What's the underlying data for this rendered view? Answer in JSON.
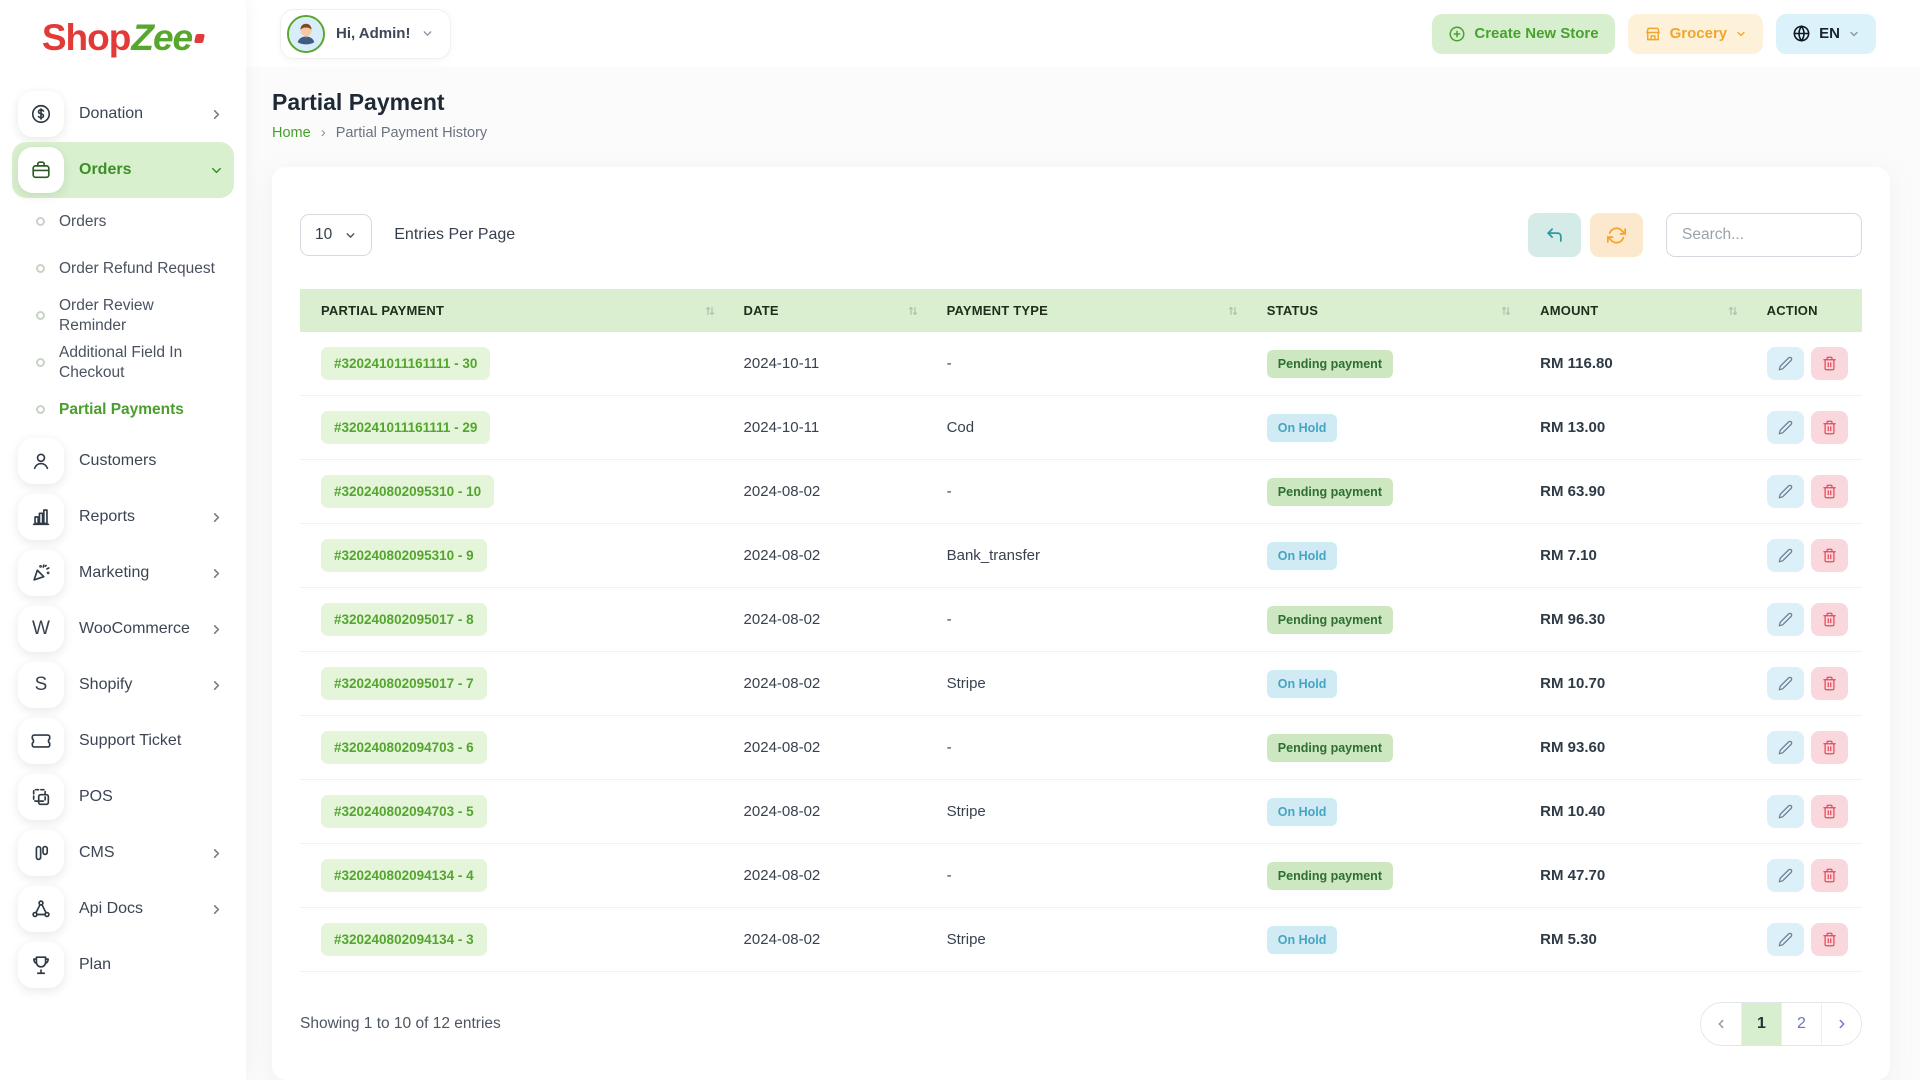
{
  "brand": {
    "logo_shop": "Shop",
    "logo_zee": "Zee"
  },
  "header": {
    "greeting": "Hi, Admin!",
    "create_new_store": "Create New Store",
    "store_selector": "Grocery",
    "language": "EN"
  },
  "sidebar": {
    "items": [
      {
        "label": "Donation",
        "icon": "donation-icon",
        "chevron": "right"
      },
      {
        "label": "Orders",
        "icon": "orders-icon",
        "chevron": "down",
        "active": true
      },
      {
        "label": "Orders",
        "type": "sub"
      },
      {
        "label": "Order Refund Request",
        "type": "sub"
      },
      {
        "label": "Order Review Reminder",
        "type": "sub"
      },
      {
        "label": "Additional Field In Checkout",
        "type": "sub"
      },
      {
        "label": "Partial Payments",
        "type": "sub",
        "active": true
      },
      {
        "label": "Customers",
        "icon": "customers-icon"
      },
      {
        "label": "Reports",
        "icon": "reports-icon",
        "chevron": "right"
      },
      {
        "label": "Marketing",
        "icon": "marketing-icon",
        "chevron": "right"
      },
      {
        "label": "WooCommerce",
        "icon": "woocommerce-icon",
        "chevron": "right"
      },
      {
        "label": "Shopify",
        "icon": "shopify-icon",
        "chevron": "right"
      },
      {
        "label": "Support Ticket",
        "icon": "support-ticket-icon"
      },
      {
        "label": "POS",
        "icon": "pos-icon"
      },
      {
        "label": "CMS",
        "icon": "cms-icon",
        "chevron": "right"
      },
      {
        "label": "Api Docs",
        "icon": "api-docs-icon",
        "chevron": "right"
      },
      {
        "label": "Plan",
        "icon": "plan-icon"
      }
    ]
  },
  "page": {
    "title": "Partial Payment",
    "breadcrumb": {
      "home": "Home",
      "separator": "›",
      "current": "Partial Payment History"
    }
  },
  "table_controls": {
    "entries_per_page_value": "10",
    "entries_per_page_label": "Entries Per Page",
    "search_placeholder": "Search..."
  },
  "table": {
    "headers": [
      "PARTIAL PAYMENT",
      "DATE",
      "PAYMENT TYPE",
      "STATUS",
      "AMOUNT",
      "ACTION"
    ],
    "rows": [
      {
        "id": "#320241011161111 - 30",
        "date": "2024-10-11",
        "payment_type": "-",
        "status": "Pending payment",
        "amount": "RM 116.80"
      },
      {
        "id": "#320241011161111 - 29",
        "date": "2024-10-11",
        "payment_type": "Cod",
        "status": "On Hold",
        "amount": "RM 13.00"
      },
      {
        "id": "#320240802095310 - 10",
        "date": "2024-08-02",
        "payment_type": "-",
        "status": "Pending payment",
        "amount": "RM 63.90"
      },
      {
        "id": "#320240802095310 - 9",
        "date": "2024-08-02",
        "payment_type": "Bank_transfer",
        "status": "On Hold",
        "amount": "RM 7.10"
      },
      {
        "id": "#320240802095017 - 8",
        "date": "2024-08-02",
        "payment_type": "-",
        "status": "Pending payment",
        "amount": "RM 96.30"
      },
      {
        "id": "#320240802095017 - 7",
        "date": "2024-08-02",
        "payment_type": "Stripe",
        "status": "On Hold",
        "amount": "RM 10.70"
      },
      {
        "id": "#320240802094703 - 6",
        "date": "2024-08-02",
        "payment_type": "-",
        "status": "Pending payment",
        "amount": "RM 93.60"
      },
      {
        "id": "#320240802094703 - 5",
        "date": "2024-08-02",
        "payment_type": "Stripe",
        "status": "On Hold",
        "amount": "RM 10.40"
      },
      {
        "id": "#320240802094134 - 4",
        "date": "2024-08-02",
        "payment_type": "-",
        "status": "Pending payment",
        "amount": "RM 47.70"
      },
      {
        "id": "#320240802094134 - 3",
        "date": "2024-08-02",
        "payment_type": "Stripe",
        "status": "On Hold",
        "amount": "RM 5.30"
      }
    ]
  },
  "footer": {
    "showing_text": "Showing 1 to 10 of 12 entries",
    "pagination": {
      "prev": "‹",
      "pages": [
        "1",
        "2"
      ],
      "active_page": "1",
      "next": "›"
    }
  },
  "icons": {
    "sort": "⇅",
    "chevron_down": "˅",
    "chevron_right": "›",
    "undo": "↶",
    "refresh": "⟳",
    "edit": "✎",
    "delete": "🗑",
    "plus": "⊕",
    "globe": "🌐"
  },
  "colors": {
    "brand_red": "#e23b37",
    "brand_green": "#57a62e",
    "table_header_bg": "#d9efcf",
    "sidebar_active_bg": "#d9f0cf",
    "id_pill_bg": "#e4f5d9",
    "id_pill_text": "#53a52e",
    "pending_badge_bg": "#cde8c0",
    "pending_badge_text": "#2d6e31",
    "onhold_badge_bg": "#d1ebf4",
    "onhold_badge_text": "#45a4c4",
    "edit_btn_bg": "#dcf0fa",
    "delete_btn_bg": "#f9d8dd",
    "delete_icon": "#e24a58",
    "undo_btn_bg": "#d4ebe8",
    "undo_icon": "#2f98a0",
    "refresh_btn_bg": "#fbe8cd",
    "refresh_icon": "#f3a42e",
    "create_store_bg": "#d8efcf",
    "create_store_text": "#47a22e",
    "grocery_bg": "#fdf2d9",
    "grocery_text": "#f2a52d",
    "lang_bg": "#dcf2fb"
  }
}
